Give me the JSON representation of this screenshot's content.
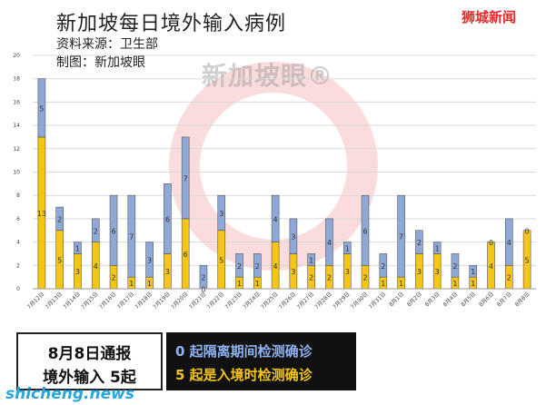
{
  "header": {
    "title": "新加坡每日境外输入病例",
    "source": "资料来源：卫生部",
    "maker": "制图：新加坡眼",
    "brand": "狮城新闻",
    "watermark_text": "新加坡眼®"
  },
  "colors": {
    "quarantine": "#8ea9d8",
    "entry": "#f5c518",
    "watermark": "#e84848",
    "brand": "#e8282d",
    "site": "#29a5e0"
  },
  "chart_data": {
    "type": "bar",
    "stacked": true,
    "categories": [
      "7月12日",
      "7月13日",
      "7月14日",
      "7月15日",
      "7月16日",
      "7月17日",
      "7月18日",
      "7月19日",
      "7月20日",
      "7月21日",
      "7月22日",
      "7月23日",
      "7月24日",
      "7月25日",
      "7月26日",
      "7月27日",
      "7月28日",
      "7月29日",
      "7月30日",
      "7月31日",
      "8月1日",
      "8月2日",
      "8月3日",
      "8月4日",
      "8月5日",
      "8月6日",
      "8月7日",
      "8月8日"
    ],
    "series": [
      {
        "key": "entry",
        "values": [
          13,
          5,
          3,
          4,
          2,
          1,
          1,
          3,
          6,
          0,
          5,
          1,
          1,
          4,
          3,
          2,
          2,
          3,
          2,
          1,
          1,
          3,
          3,
          1,
          1,
          4,
          2,
          5
        ]
      },
      {
        "key": "quarantine",
        "values": [
          5,
          2,
          1,
          2,
          6,
          7,
          3,
          6,
          7,
          2,
          3,
          2,
          2,
          4,
          3,
          1,
          4,
          1,
          6,
          2,
          7,
          2,
          1,
          2,
          1,
          0,
          4,
          0
        ]
      }
    ],
    "ylim": [
      0,
      20
    ],
    "yticks": [
      0,
      2,
      4,
      6,
      8,
      10,
      12,
      14,
      16,
      18,
      20
    ],
    "grid": true
  },
  "summary": {
    "line1": "8月8日通报",
    "line2": "境外输入 5起",
    "note1": "0 起隔离期间检测确诊",
    "note2": "5 起是入境时检测确诊"
  },
  "footer": {
    "site": "shicheng.news"
  }
}
